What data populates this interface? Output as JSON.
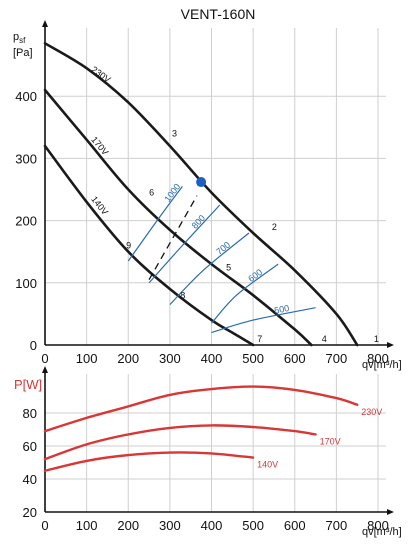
{
  "chart_data": [
    {
      "type": "line",
      "title": "VENT-160N",
      "ylabel": "p_sf [Pa]",
      "xlabel": "qv[m³/h]",
      "xlim": [
        0,
        800
      ],
      "ylim": [
        0,
        500
      ],
      "xticks": [
        0,
        100,
        200,
        300,
        400,
        500,
        600,
        700,
        800
      ],
      "yticks": [
        0,
        100,
        200,
        300,
        400
      ],
      "grid": true,
      "series": [
        {
          "name": "230V",
          "x": [
            0,
            100,
            200,
            300,
            400,
            500,
            600,
            700,
            750
          ],
          "y": [
            485,
            445,
            390,
            320,
            245,
            180,
            120,
            50,
            0
          ]
        },
        {
          "name": "170V",
          "x": [
            0,
            100,
            200,
            300,
            400,
            500,
            600,
            640
          ],
          "y": [
            410,
            330,
            250,
            185,
            130,
            80,
            25,
            0
          ]
        },
        {
          "name": "140V",
          "x": [
            0,
            100,
            200,
            300,
            400,
            450,
            500
          ],
          "y": [
            320,
            230,
            150,
            90,
            40,
            20,
            0
          ]
        }
      ],
      "rpm_lines": [
        {
          "label": "1000",
          "x": [
            200,
            280,
            330
          ],
          "y": [
            135,
            210,
            255
          ]
        },
        {
          "label": "800",
          "x": [
            250,
            330,
            420
          ],
          "y": [
            100,
            160,
            225
          ]
        },
        {
          "label": "700",
          "x": [
            300,
            380,
            490
          ],
          "y": [
            65,
            120,
            180
          ]
        },
        {
          "label": "600",
          "x": [
            400,
            460,
            560
          ],
          "y": [
            35,
            80,
            130
          ]
        },
        {
          "label": "500",
          "x": [
            400,
            500,
            650
          ],
          "y": [
            20,
            40,
            60
          ]
        }
      ],
      "operating_point": {
        "x": 375,
        "y": 262
      },
      "dashed_line": {
        "x": [
          250,
          365
        ],
        "y": [
          105,
          240
        ]
      },
      "point_labels": [
        {
          "label": "1",
          "x": 790,
          "y": 5
        },
        {
          "label": "2",
          "x": 545,
          "y": 185
        },
        {
          "label": "3",
          "x": 305,
          "y": 335
        },
        {
          "label": "4",
          "x": 665,
          "y": 5
        },
        {
          "label": "5",
          "x": 435,
          "y": 120
        },
        {
          "label": "6",
          "x": 250,
          "y": 240
        },
        {
          "label": "7",
          "x": 510,
          "y": 5
        },
        {
          "label": "8",
          "x": 325,
          "y": 75
        },
        {
          "label": "9",
          "x": 195,
          "y": 155
        }
      ]
    },
    {
      "type": "line",
      "ylabel": "P[W]",
      "xlabel": "qv[m³/h]",
      "xlim": [
        0,
        800
      ],
      "ylim": [
        20,
        100
      ],
      "xticks": [
        0,
        100,
        200,
        300,
        400,
        500,
        600,
        700,
        800
      ],
      "yticks": [
        20,
        40,
        60,
        80
      ],
      "grid": true,
      "series": [
        {
          "name": "230V",
          "x": [
            0,
            100,
            200,
            300,
            400,
            500,
            600,
            700,
            750
          ],
          "y": [
            69,
            77,
            84,
            91,
            94.5,
            96,
            94,
            89,
            85
          ]
        },
        {
          "name": "170V",
          "x": [
            0,
            100,
            200,
            300,
            400,
            500,
            600,
            650
          ],
          "y": [
            52,
            61,
            67,
            71,
            72.5,
            71.5,
            69,
            67
          ]
        },
        {
          "name": "140V",
          "x": [
            0,
            100,
            200,
            300,
            400,
            500
          ],
          "y": [
            45,
            51,
            54.5,
            56,
            55.5,
            53
          ]
        }
      ]
    }
  ],
  "labels": {
    "title": "VENT-160N",
    "ylabel_main": "p",
    "ylabel_main_sub": "sf",
    "ylabel_main_unit": "[Pa]",
    "xlabel": "qv[m³/h]",
    "ylabel_power": "P[W]"
  },
  "colors": {
    "curve": "#1a1a1a",
    "rpm": "#2b6cb0",
    "power": "#d93636",
    "point": "#1f5fbf"
  }
}
